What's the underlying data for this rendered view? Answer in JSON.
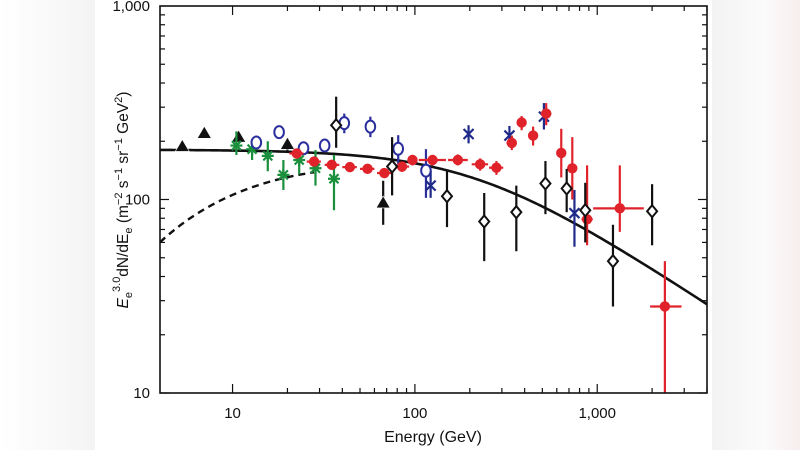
{
  "colors": {
    "black": "#111111",
    "green": "#1a8f3c",
    "blue": "#2b2f9e",
    "red": "#e0232b",
    "navy": "#1f2a8a"
  },
  "chart_data": {
    "type": "scatter",
    "xscale": "log",
    "yscale": "log",
    "xlim": [
      4,
      4000
    ],
    "ylim": [
      10,
      1000
    ],
    "xlabel": "Energy (GeV)",
    "ylabel": {
      "text_E": "E",
      "sub_e": "e",
      "sup": "3.0",
      "text_dN": "dN/dE",
      "sub_e2": "e",
      "units": " (m",
      "u1": "−2",
      "u2": " s",
      "u3": "−1",
      "u4": " sr",
      "u5": "−1",
      "u6": " GeV",
      "u7": "2",
      "u8": ")"
    },
    "xticks": [
      {
        "value": 10,
        "label": "10"
      },
      {
        "value": 100,
        "label": "100"
      },
      {
        "value": 1000,
        "label": "1,000"
      }
    ],
    "yticks": [
      {
        "value": 10,
        "label": "10"
      },
      {
        "value": 100,
        "label": "100"
      },
      {
        "value": 1000,
        "label": "1,000"
      }
    ],
    "series": [
      {
        "marker": "triangle",
        "color": "black",
        "points": [
          {
            "x": 5.3,
            "y": 188,
            "lo": 180,
            "hi": 196
          },
          {
            "x": 7.0,
            "y": 220,
            "lo": 210,
            "hi": 230
          },
          {
            "x": 10.8,
            "y": 210,
            "lo": 198,
            "hi": 222
          },
          {
            "x": 20.0,
            "y": 193,
            "lo": 178,
            "hi": 208
          },
          {
            "x": 67.0,
            "y": 96,
            "lo": 74,
            "hi": 125
          }
        ]
      },
      {
        "marker": "star",
        "color": "green",
        "points": [
          {
            "x": 10.5,
            "y": 190,
            "lo": 170,
            "hi": 225
          },
          {
            "x": 12.8,
            "y": 182,
            "lo": 160,
            "hi": 205
          },
          {
            "x": 15.6,
            "y": 168,
            "lo": 140,
            "hi": 200
          },
          {
            "x": 19.0,
            "y": 134,
            "lo": 112,
            "hi": 160
          },
          {
            "x": 23.2,
            "y": 160,
            "lo": 135,
            "hi": 190
          },
          {
            "x": 28.5,
            "y": 145,
            "lo": 118,
            "hi": 180
          },
          {
            "x": 36.0,
            "y": 128,
            "lo": 88,
            "hi": 170
          }
        ]
      },
      {
        "marker": "circle-open",
        "color": "blue",
        "points": [
          {
            "x": 13.5,
            "y": 197,
            "lo": 188,
            "hi": 207
          },
          {
            "x": 18.0,
            "y": 223,
            "lo": 212,
            "hi": 235
          },
          {
            "x": 24.5,
            "y": 184,
            "lo": 173,
            "hi": 196
          },
          {
            "x": 32.0,
            "y": 190,
            "lo": 178,
            "hi": 204
          },
          {
            "x": 41.0,
            "y": 248,
            "lo": 220,
            "hi": 278
          },
          {
            "x": 57.0,
            "y": 238,
            "lo": 210,
            "hi": 268
          },
          {
            "x": 81.0,
            "y": 183,
            "lo": 152,
            "hi": 215
          },
          {
            "x": 115.0,
            "y": 141,
            "lo": 102,
            "hi": 182
          }
        ]
      },
      {
        "marker": "cross",
        "color": "navy",
        "points": [
          {
            "x": 122.0,
            "y": 118,
            "lo": 102,
            "hi": 140
          },
          {
            "x": 197.0,
            "y": 218,
            "lo": 195,
            "hi": 242
          },
          {
            "x": 330.0,
            "y": 214,
            "lo": 190,
            "hi": 240
          },
          {
            "x": 510.0,
            "y": 268,
            "lo": 230,
            "hi": 315
          },
          {
            "x": 750.0,
            "y": 85,
            "lo": 57,
            "hi": 112
          }
        ]
      },
      {
        "marker": "circle-filled",
        "color": "red",
        "points": [
          {
            "x": 22.5,
            "y": 173,
            "lo": 163,
            "hi": 183,
            "xl": 20.5,
            "xh": 24.5
          },
          {
            "x": 28.0,
            "y": 157,
            "lo": 149,
            "hi": 166,
            "xl": 25.5,
            "xh": 30.5
          },
          {
            "x": 35.0,
            "y": 151,
            "lo": 143,
            "hi": 160,
            "xl": 32.0,
            "xh": 38.5
          },
          {
            "x": 44.0,
            "y": 147,
            "lo": 139,
            "hi": 155,
            "xl": 40.0,
            "xh": 48.0
          },
          {
            "x": 55.0,
            "y": 144,
            "lo": 136,
            "hi": 152,
            "xl": 50.0,
            "xh": 60.0
          },
          {
            "x": 68.0,
            "y": 137,
            "lo": 129,
            "hi": 145,
            "xl": 62.0,
            "xh": 75.0
          },
          {
            "x": 85.0,
            "y": 148,
            "lo": 139,
            "hi": 157,
            "xl": 77.0,
            "xh": 93.0
          },
          {
            "x": 97.0,
            "y": 160,
            "lo": 150,
            "hi": 170,
            "xl": 93.0,
            "xh": 102.0
          },
          {
            "x": 125.0,
            "y": 160,
            "lo": 150,
            "hi": 170,
            "xl": 105.0,
            "xh": 148.0
          },
          {
            "x": 172.0,
            "y": 160,
            "lo": 150,
            "hi": 171,
            "xl": 152.0,
            "xh": 195.0
          },
          {
            "x": 228.0,
            "y": 152,
            "lo": 141,
            "hi": 163,
            "xl": 205.0,
            "xh": 252.0
          },
          {
            "x": 280.0,
            "y": 146,
            "lo": 134,
            "hi": 158,
            "xl": 255.0,
            "xh": 305.0
          },
          {
            "x": 340.0,
            "y": 196,
            "lo": 180,
            "hi": 214,
            "xl": 318.0,
            "xh": 362.0
          },
          {
            "x": 385.0,
            "y": 250,
            "lo": 228,
            "hi": 270
          },
          {
            "x": 445.0,
            "y": 214,
            "lo": 190,
            "hi": 238
          },
          {
            "x": 525.0,
            "y": 278,
            "lo": 242,
            "hi": 315,
            "xl": 490.0,
            "xh": 560.0
          },
          {
            "x": 635.0,
            "y": 174,
            "lo": 130,
            "hi": 232
          },
          {
            "x": 730.0,
            "y": 145,
            "lo": 100,
            "hi": 210
          },
          {
            "x": 880.0,
            "y": 79,
            "lo": 58,
            "hi": 150,
            "xl": 820.0,
            "xh": 945.0
          },
          {
            "x": 1330.0,
            "y": 90,
            "lo": 68,
            "hi": 150,
            "xl": 950.0,
            "xh": 1800.0
          },
          {
            "x": 2350.0,
            "y": 28,
            "lo": 10,
            "hi": 48,
            "xl": 1950.0,
            "xh": 2900.0
          }
        ]
      },
      {
        "marker": "diamond",
        "color": "black",
        "points": [
          {
            "x": 37.0,
            "y": 242,
            "lo": 185,
            "hi": 340
          },
          {
            "x": 75.0,
            "y": 148,
            "lo": 105,
            "hi": 210
          },
          {
            "x": 150.0,
            "y": 104,
            "lo": 72,
            "hi": 140
          },
          {
            "x": 240.0,
            "y": 77,
            "lo": 48,
            "hi": 108
          },
          {
            "x": 360.0,
            "y": 86,
            "lo": 54,
            "hi": 118
          },
          {
            "x": 520.0,
            "y": 121,
            "lo": 84,
            "hi": 158
          },
          {
            "x": 680.0,
            "y": 114,
            "lo": 86,
            "hi": 144
          },
          {
            "x": 860.0,
            "y": 88,
            "lo": 60,
            "hi": 122
          },
          {
            "x": 1220.0,
            "y": 48,
            "lo": 28,
            "hi": 74
          },
          {
            "x": 2000.0,
            "y": 87,
            "lo": 58,
            "hi": 120
          }
        ]
      }
    ],
    "lines": [
      {
        "style": "solid",
        "color": "black"
      },
      {
        "style": "dashed",
        "color": "black"
      }
    ]
  }
}
